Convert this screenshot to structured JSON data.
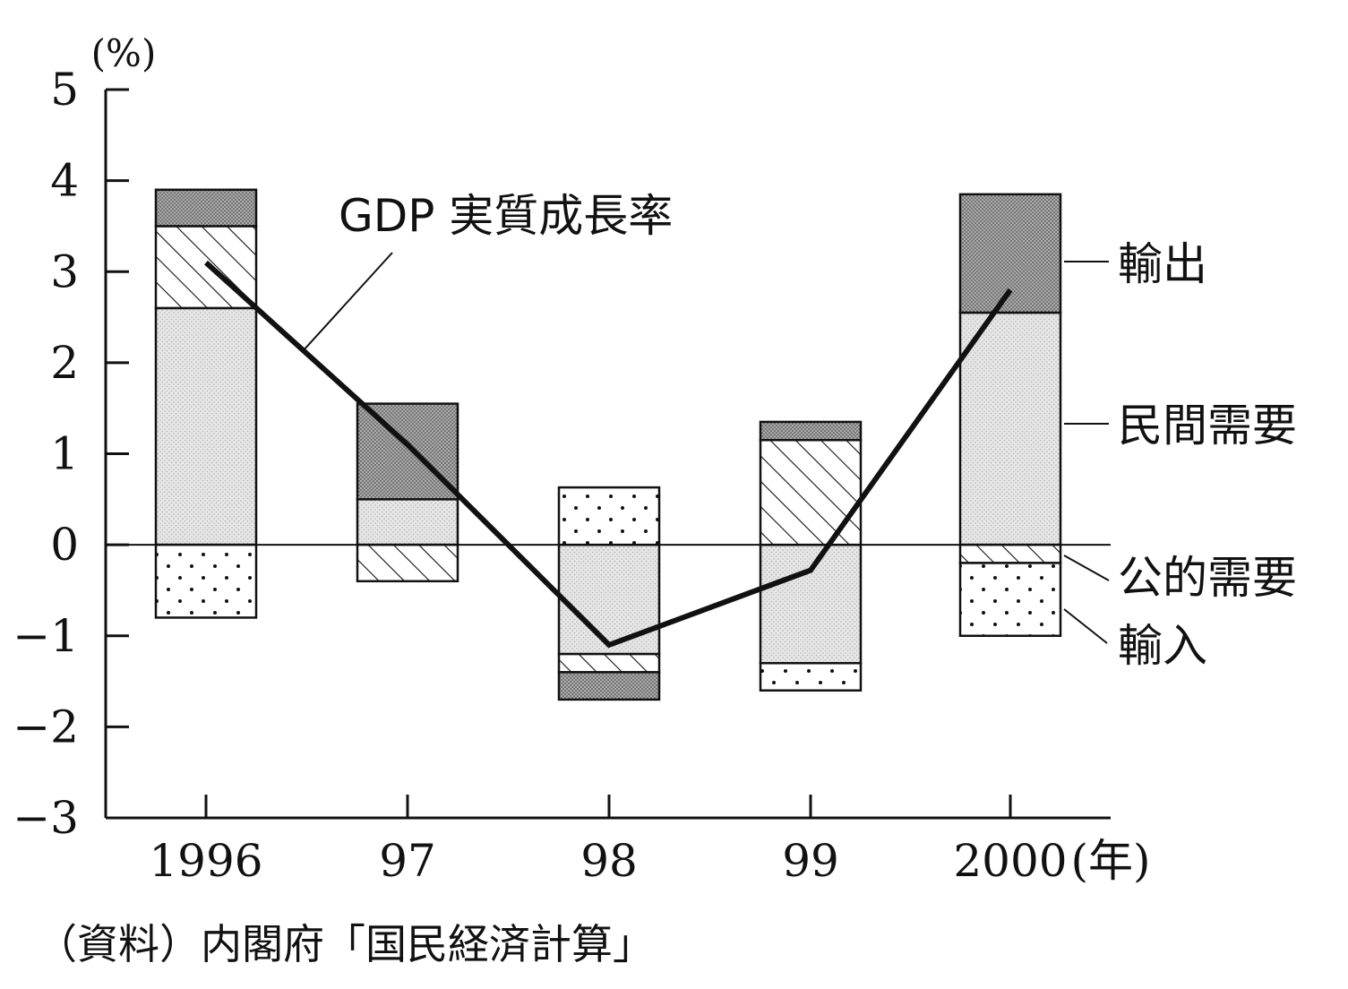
{
  "chart_data": {
    "type": "bar",
    "stacked": true,
    "y_unit_label": "(%)",
    "x_unit_label": "(年)",
    "categories": [
      "1996",
      "97",
      "98",
      "99",
      "2000"
    ],
    "ylim": [
      -3,
      5
    ],
    "yticks": [
      "5",
      "4",
      "3",
      "2",
      "1",
      "0",
      "−1",
      "−2",
      "−3"
    ],
    "ytick_values": [
      5,
      4,
      3,
      2,
      1,
      0,
      -1,
      -2,
      -3
    ],
    "series": [
      {
        "name": "民間需要",
        "pattern": "light-dots",
        "values": [
          2.6,
          0.5,
          -1.2,
          -1.3,
          2.55
        ]
      },
      {
        "name": "公的需要",
        "pattern": "hatch",
        "values": [
          0.9,
          -0.4,
          -0.2,
          1.15,
          -0.2
        ]
      },
      {
        "name": "輸出",
        "pattern": "dark-dots",
        "values": [
          0.4,
          1.05,
          -0.3,
          0.2,
          1.3
        ]
      },
      {
        "name": "輸入",
        "pattern": "sparse-dots",
        "values": [
          -0.8,
          0,
          0.63,
          -0.3,
          -0.8
        ]
      }
    ],
    "line": {
      "name": "GDP 実質成長率",
      "values": [
        3.1,
        1.1,
        -1.1,
        -0.28,
        2.8
      ]
    },
    "legend_order": [
      "輸出",
      "民間需要",
      "公的需要",
      "輸入"
    ],
    "grid": false
  },
  "source_note": "（資料）内閣府「国民経済計算」",
  "colors": {
    "ink": "#111111",
    "light": "#dcdcdc",
    "dark": "#9a9a9a"
  }
}
